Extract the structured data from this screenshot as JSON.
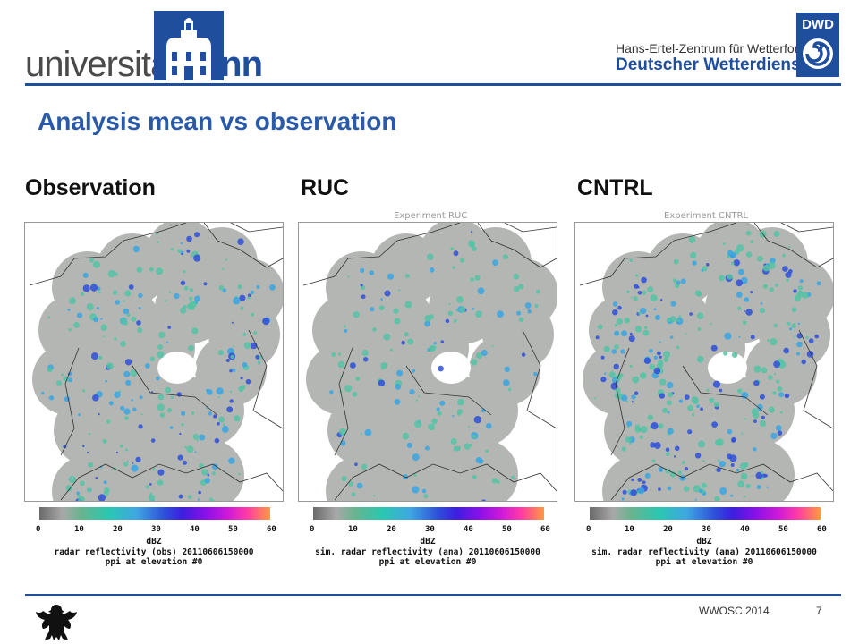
{
  "header": {
    "university_logo_prefix": "universität",
    "university_logo_suffix": "bonn",
    "dwd_center": "Hans-Ertel-Zentrum für Wetterforschung",
    "dwd_name": "Deutscher Wetterdienst",
    "dwd_badge": "DWD"
  },
  "title": "Analysis mean vs observation",
  "panels": [
    {
      "label": "Observation",
      "experiment": "",
      "colorbar_unit": "dBZ",
      "caption_line1": "radar reflectivity (obs) 20110606150000",
      "caption_line2": "ppi at elevation #0"
    },
    {
      "label": "RUC",
      "experiment": "Experiment RUC",
      "colorbar_unit": "dBZ",
      "caption_line1": "sim. radar reflectivity (ana) 20110606150000",
      "caption_line2": "ppi at elevation #0"
    },
    {
      "label": "CNTRL",
      "experiment": "Experiment CNTRL",
      "colorbar_unit": "dBZ",
      "caption_line1": "sim. radar reflectivity (ana) 20110606150000",
      "caption_line2": "ppi at elevation #0"
    }
  ],
  "colorbar_ticks": [
    "0",
    "10",
    "20",
    "30",
    "40",
    "50",
    "60"
  ],
  "footer": {
    "event": "WWOSC 2014",
    "page": "7"
  }
}
